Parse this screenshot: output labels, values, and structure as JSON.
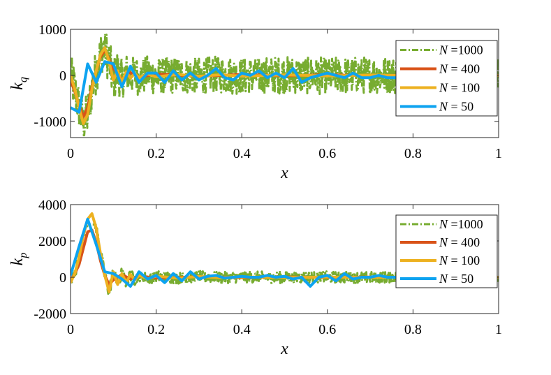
{
  "colors": {
    "n1000": "#77ac30",
    "n400": "#d95319",
    "n100": "#edb120",
    "n50": "#0da3f0"
  },
  "chart_data": [
    {
      "type": "line",
      "xlabel": "x",
      "ylabel": "k_q",
      "xlim": [
        0,
        1
      ],
      "ylim": [
        -1350,
        1000
      ],
      "x_ticks": [
        "0",
        "0.2",
        "0.4",
        "0.6",
        "0.8",
        "1"
      ],
      "y_ticks": [
        "-1000",
        "0",
        "1000"
      ],
      "legend_position": "top-right",
      "series": [
        {
          "name": "N =1000",
          "style": "dash-dot",
          "color": "#77ac30",
          "x": [
            0,
            0.1,
            1
          ],
          "y": [
            0,
            0,
            0
          ],
          "y_range": [
            -1300,
            900
          ],
          "noise_amplitude": 450
        },
        {
          "name": "N = 400",
          "style": "solid",
          "color": "#d95319",
          "x": [
            0,
            0.01,
            0.02,
            0.03,
            0.04,
            0.05,
            0.06,
            0.07,
            0.08,
            0.09,
            0.1,
            0.12,
            0.14,
            0.16,
            0.2,
            0.3,
            0.4,
            0.5,
            0.6,
            0.7,
            0.8,
            0.9,
            1.0
          ],
          "y": [
            -100,
            -350,
            -650,
            -900,
            -700,
            -250,
            100,
            400,
            550,
            350,
            150,
            -80,
            60,
            -40,
            30,
            -20,
            20,
            -10,
            15,
            -10,
            10,
            -5,
            0
          ]
        },
        {
          "name": "N = 100",
          "style": "solid",
          "color": "#edb120",
          "x": [
            0,
            0.01,
            0.02,
            0.03,
            0.04,
            0.05,
            0.06,
            0.07,
            0.08,
            0.09,
            0.1,
            0.11,
            0.12,
            0.13,
            0.14,
            0.15,
            0.16,
            0.18,
            0.2,
            0.25,
            0.3,
            0.35,
            0.4,
            0.5,
            0.6,
            0.7,
            0.8,
            0.9,
            1.0
          ],
          "y": [
            0,
            -300,
            -700,
            -1050,
            -850,
            -300,
            100,
            450,
            600,
            300,
            -100,
            100,
            -150,
            80,
            -60,
            40,
            -50,
            30,
            -30,
            20,
            -20,
            15,
            -15,
            10,
            -10,
            8,
            -8,
            5,
            0
          ]
        },
        {
          "name": "N = 50",
          "style": "solid",
          "color": "#0da3f0",
          "x": [
            0,
            0.02,
            0.04,
            0.06,
            0.08,
            0.1,
            0.12,
            0.14,
            0.16,
            0.18,
            0.2,
            0.22,
            0.24,
            0.26,
            0.28,
            0.3,
            0.32,
            0.34,
            0.36,
            0.38,
            0.4,
            0.42,
            0.44,
            0.46,
            0.48,
            0.5,
            0.52,
            0.54,
            0.56,
            0.58,
            0.6,
            0.62,
            0.64,
            0.66,
            0.68,
            0.7,
            0.72,
            0.74,
            0.76
          ],
          "y": [
            -700,
            -800,
            250,
            -150,
            300,
            250,
            -250,
            200,
            -150,
            50,
            50,
            -150,
            100,
            -100,
            50,
            -100,
            0,
            150,
            -50,
            -100,
            50,
            0,
            100,
            -50,
            50,
            -50,
            150,
            -150,
            -50,
            0,
            50,
            0,
            -50,
            50,
            -50,
            -50,
            0,
            -50,
            -50
          ]
        }
      ]
    },
    {
      "type": "line",
      "xlabel": "x",
      "ylabel": "k_p",
      "xlim": [
        0,
        1
      ],
      "ylim": [
        -2000,
        4000
      ],
      "x_ticks": [
        "0",
        "0.2",
        "0.4",
        "0.6",
        "0.8",
        "1"
      ],
      "y_ticks": [
        "-2000",
        "0",
        "2000",
        "4000"
      ],
      "legend_position": "top-right",
      "series": [
        {
          "name": "N =1000",
          "style": "dash-dot",
          "color": "#77ac30",
          "x": [
            0,
            0.1,
            1
          ],
          "y": [
            0,
            0,
            0
          ],
          "y_range": [
            -1100,
            2900
          ],
          "noise_amplitude": 350
        },
        {
          "name": "N = 400",
          "style": "solid",
          "color": "#d95319",
          "x": [
            0,
            0.01,
            0.02,
            0.03,
            0.04,
            0.05,
            0.06,
            0.07,
            0.08,
            0.09,
            0.1,
            0.12,
            0.14,
            0.16,
            0.2,
            0.3,
            0.4,
            0.5,
            0.6,
            0.7,
            0.8,
            0.9,
            1.0
          ],
          "y": [
            -200,
            200,
            700,
            1600,
            2500,
            2600,
            1900,
            900,
            100,
            -400,
            -150,
            150,
            -100,
            80,
            -50,
            30,
            -20,
            15,
            -10,
            10,
            -5,
            5,
            0
          ]
        },
        {
          "name": "N = 100",
          "style": "solid",
          "color": "#edb120",
          "x": [
            0,
            0.01,
            0.02,
            0.03,
            0.04,
            0.05,
            0.06,
            0.07,
            0.08,
            0.09,
            0.1,
            0.11,
            0.12,
            0.13,
            0.14,
            0.15,
            0.16,
            0.18,
            0.2,
            0.25,
            0.3,
            0.35,
            0.4,
            0.5,
            0.6,
            0.7,
            0.8,
            0.9,
            1.0
          ],
          "y": [
            -300,
            200,
            1100,
            2300,
            3200,
            3500,
            2700,
            1300,
            100,
            -800,
            300,
            -400,
            200,
            -300,
            150,
            -150,
            100,
            -80,
            60,
            -50,
            40,
            -30,
            20,
            -15,
            10,
            -10,
            8,
            -5,
            0
          ]
        },
        {
          "name": "N = 50",
          "style": "solid",
          "color": "#0da3f0",
          "x": [
            0,
            0.02,
            0.04,
            0.06,
            0.08,
            0.1,
            0.12,
            0.14,
            0.16,
            0.18,
            0.2,
            0.22,
            0.24,
            0.26,
            0.28,
            0.3,
            0.32,
            0.34,
            0.36,
            0.38,
            0.4,
            0.42,
            0.44,
            0.46,
            0.48,
            0.5,
            0.52,
            0.54,
            0.56,
            0.58,
            0.6,
            0.62,
            0.64,
            0.66,
            0.68,
            0.7,
            0.72,
            0.74,
            0.76
          ],
          "y": [
            100,
            1700,
            3200,
            1800,
            300,
            200,
            -100,
            -500,
            300,
            -100,
            100,
            -300,
            200,
            -200,
            300,
            -100,
            50,
            100,
            -50,
            0,
            50,
            0,
            0,
            100,
            0,
            50,
            -100,
            0,
            -500,
            0,
            100,
            -200,
            200,
            -100,
            0,
            0,
            100,
            0,
            0
          ]
        }
      ]
    }
  ]
}
